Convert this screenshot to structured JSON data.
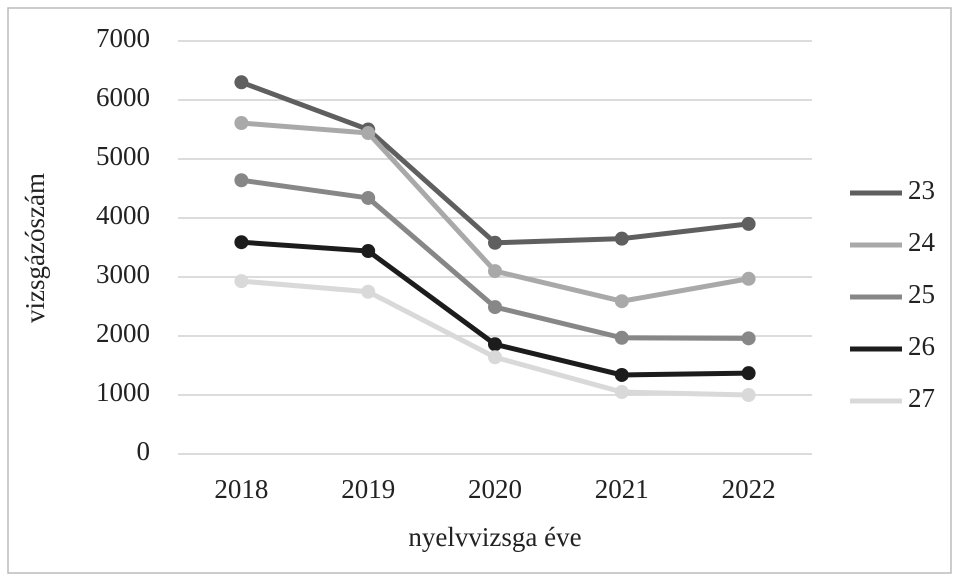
{
  "chart_data": {
    "type": "line",
    "xlabel": "nyelvvizsga éve",
    "ylabel": "vizsgázószám",
    "categories": [
      "2018",
      "2019",
      "2020",
      "2021",
      "2022"
    ],
    "series": [
      {
        "name": "23",
        "color": "#5f5f5f",
        "values": [
          6300,
          5500,
          3580,
          3650,
          3900
        ]
      },
      {
        "name": "24",
        "color": "#a9a9a9",
        "values": [
          5610,
          5440,
          3100,
          2590,
          2970
        ]
      },
      {
        "name": "25",
        "color": "#878787",
        "values": [
          4640,
          4340,
          2490,
          1970,
          1960
        ]
      },
      {
        "name": "26",
        "color": "#1c1c1c",
        "values": [
          3590,
          3440,
          1860,
          1340,
          1370
        ]
      },
      {
        "name": "27",
        "color": "#d9d9d9",
        "values": [
          2930,
          2750,
          1640,
          1050,
          1000
        ]
      }
    ],
    "ylim": [
      0,
      7000
    ],
    "yticks": [
      0,
      1000,
      2000,
      3000,
      4000,
      5000,
      6000,
      7000
    ],
    "grid": true,
    "legend": "right"
  }
}
